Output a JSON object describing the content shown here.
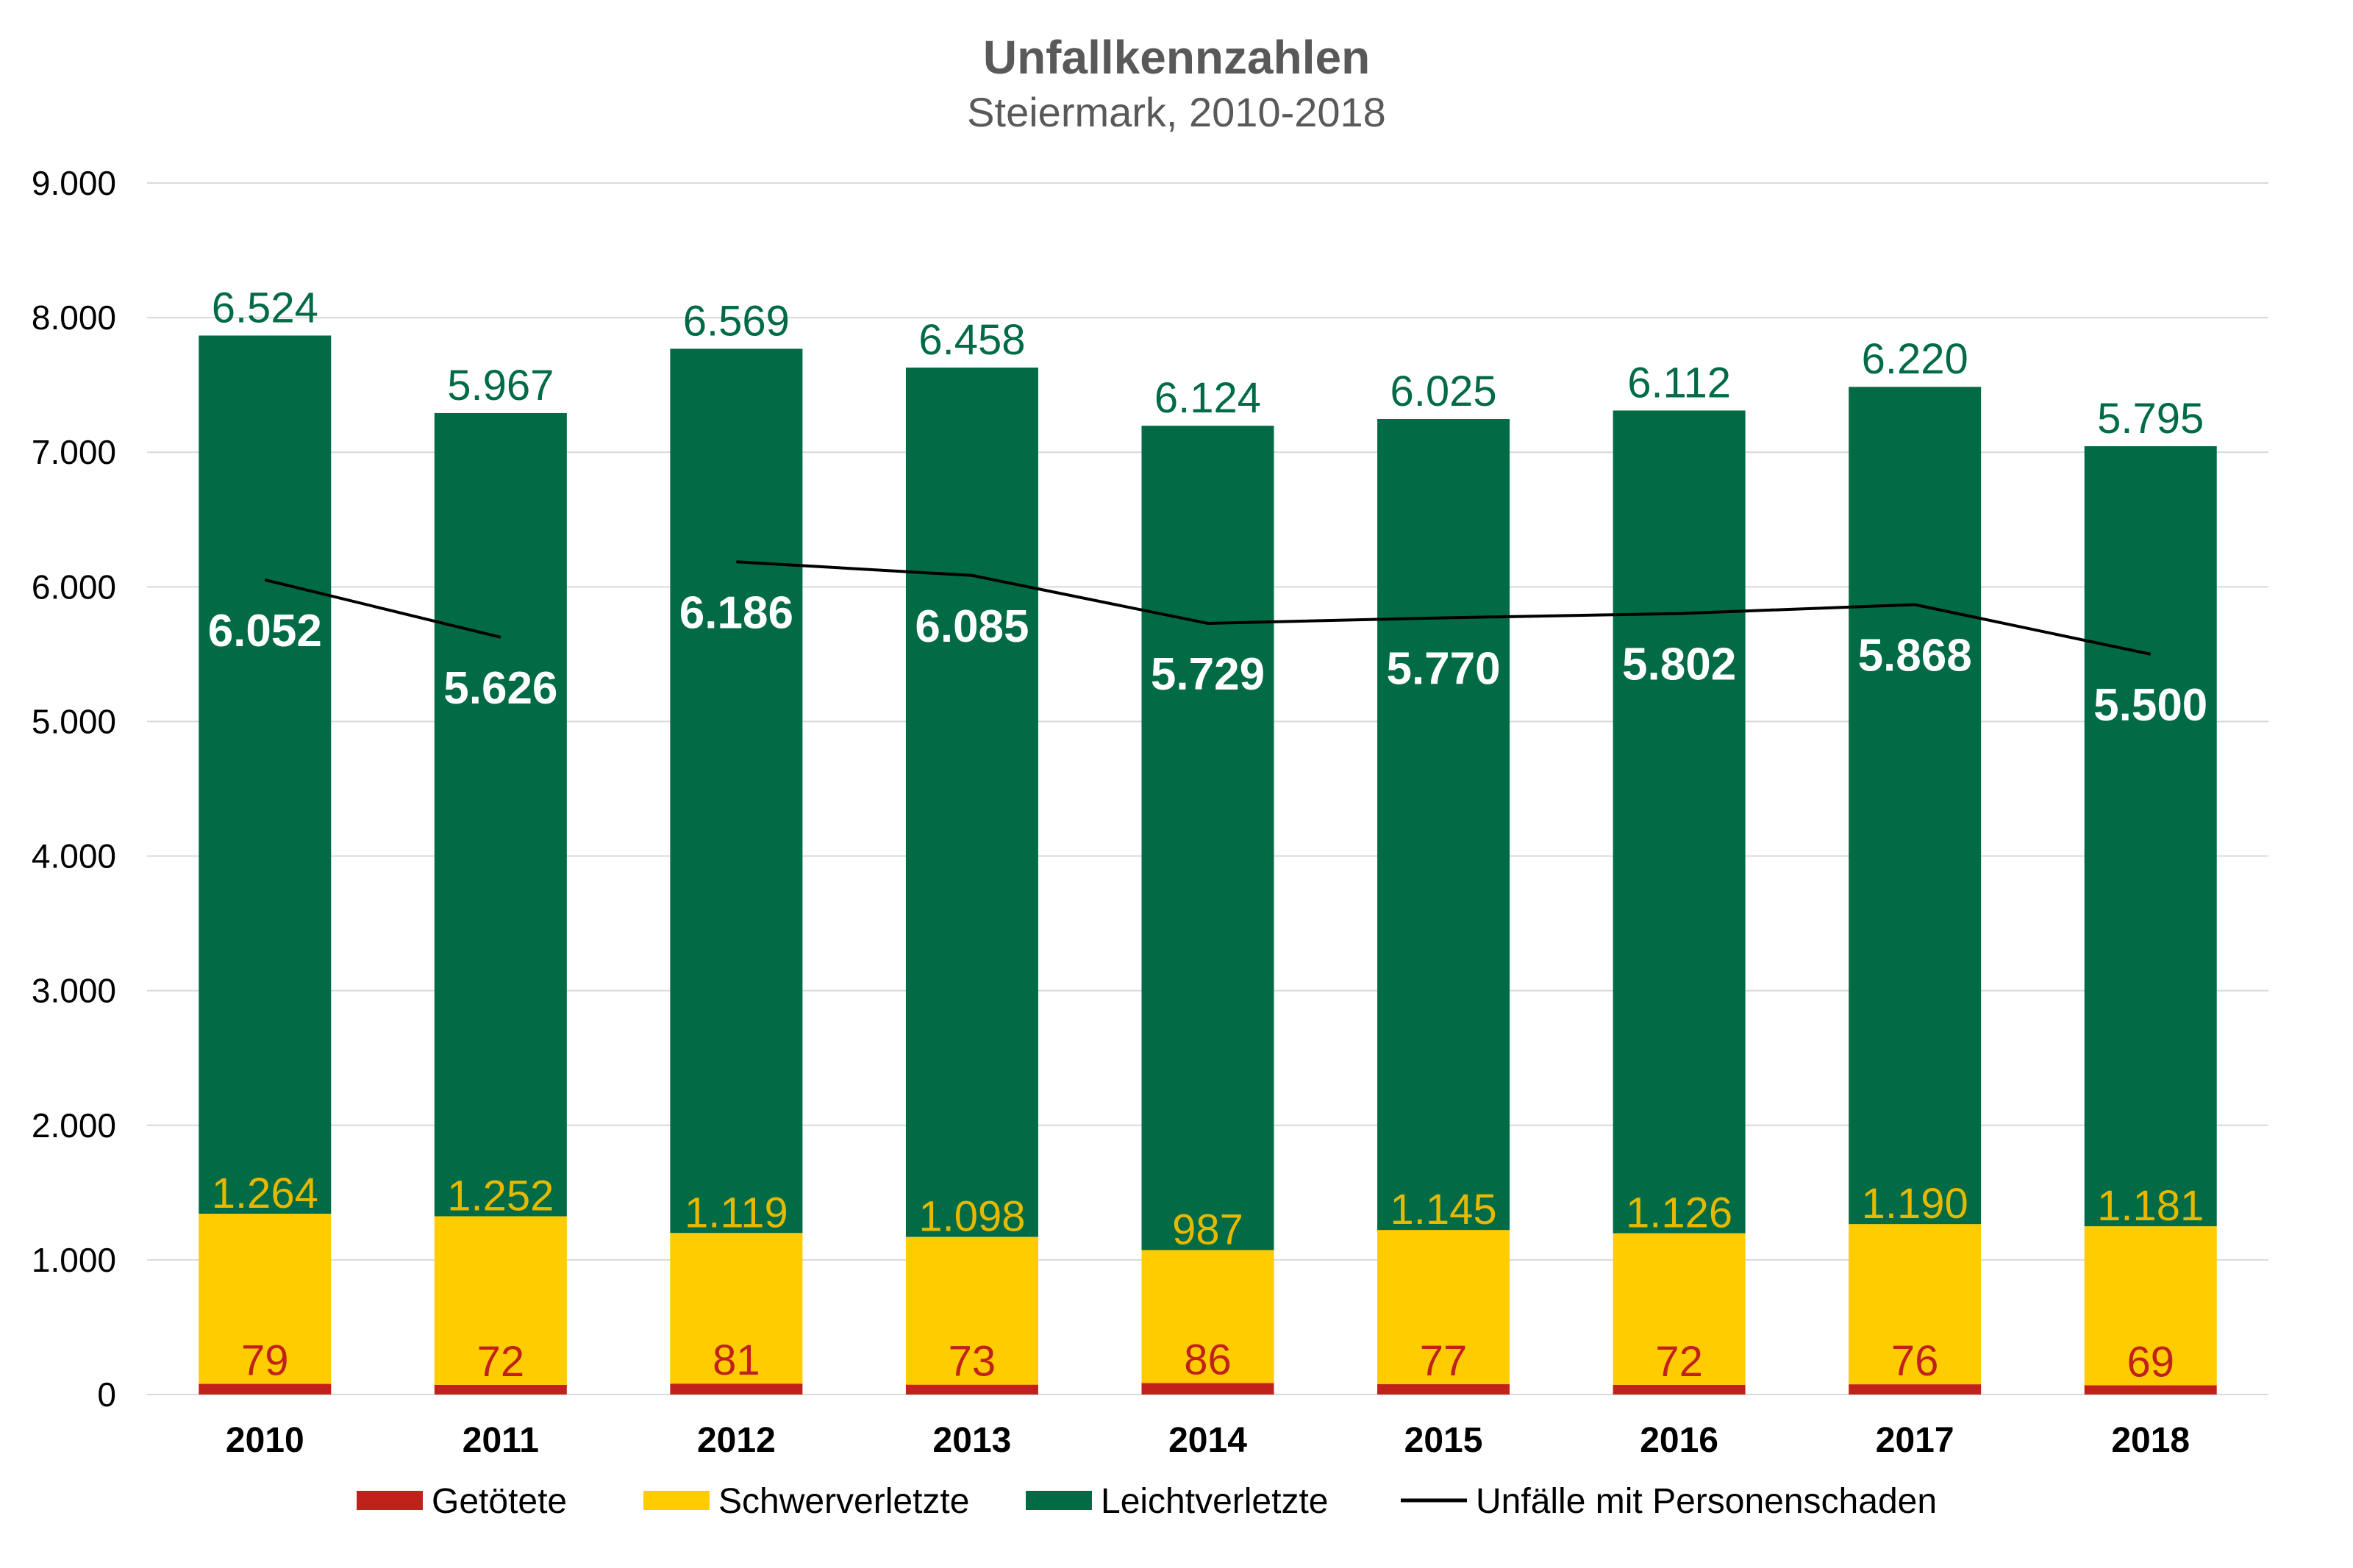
{
  "chart_data": {
    "type": "bar",
    "stacked": true,
    "title": "Unfallkennzahlen",
    "subtitle": "Steiermark, 2010-2018",
    "categories": [
      "2010",
      "2011",
      "2012",
      "2013",
      "2014",
      "2015",
      "2016",
      "2017",
      "2018"
    ],
    "ylim": [
      0,
      9000
    ],
    "yticks": [
      0,
      1000,
      2000,
      3000,
      4000,
      5000,
      6000,
      7000,
      8000,
      9000
    ],
    "ytick_labels": [
      "0",
      "1.000",
      "2.000",
      "3.000",
      "4.000",
      "5.000",
      "6.000",
      "7.000",
      "8.000",
      "9.000"
    ],
    "grid": true,
    "legend_position": "bottom",
    "series": [
      {
        "name": "Getötete",
        "color": "#c0221b",
        "label_color": "#c0221b",
        "values": [
          79,
          72,
          81,
          73,
          86,
          77,
          72,
          76,
          69
        ],
        "labels": [
          "79",
          "72",
          "81",
          "73",
          "86",
          "77",
          "72",
          "76",
          "69"
        ]
      },
      {
        "name": "Schwerverletzte",
        "color": "#ffcc00",
        "label_color": "#e6b800",
        "values": [
          1264,
          1252,
          1119,
          1098,
          987,
          1145,
          1126,
          1190,
          1181
        ],
        "labels": [
          "1.264",
          "1.252",
          "1.119",
          "1.098",
          "987",
          "1.145",
          "1.126",
          "1.190",
          "1.181"
        ]
      },
      {
        "name": "Leichtverletzte",
        "color": "#006b45",
        "label_color": "#006b45",
        "values": [
          6524,
          5967,
          6569,
          6458,
          6124,
          6025,
          6112,
          6220,
          5795
        ],
        "labels": [
          "6.524",
          "5.967",
          "6.569",
          "6.458",
          "6.124",
          "6.025",
          "6.112",
          "6.220",
          "5.795"
        ]
      }
    ],
    "line_series": {
      "name": "Unfälle mit Personenschaden",
      "color": "#000000",
      "values": [
        6052,
        5626,
        6186,
        6085,
        5729,
        5770,
        5802,
        5868,
        5500
      ],
      "labels": [
        "6.052",
        "5.626",
        "6.186",
        "6.085",
        "5.729",
        "5.770",
        "5.802",
        "5.868",
        "5.500"
      ],
      "segments": [
        [
          0,
          1
        ],
        [
          2,
          8
        ]
      ]
    }
  }
}
